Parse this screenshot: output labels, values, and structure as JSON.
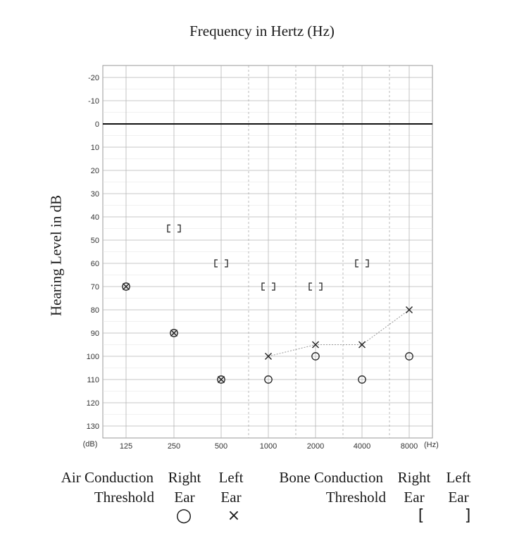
{
  "chart_data": {
    "type": "scatter",
    "title": "Frequency in Hertz (Hz)",
    "ylabel": "Hearing Level in dB",
    "x_unit": "(Hz)",
    "y_unit": "(dB)",
    "x_ticks": [
      "125",
      "250",
      "500",
      "1000",
      "2000",
      "4000",
      "8000"
    ],
    "y_ticks": [
      -20,
      -10,
      0,
      10,
      20,
      30,
      40,
      50,
      60,
      70,
      80,
      90,
      100,
      110,
      120,
      130
    ],
    "ylim": [
      -20,
      130
    ],
    "y_inverted": true,
    "grid": true,
    "zero_line": 0,
    "series": [
      {
        "name": "Air Conduction Threshold Right Ear",
        "marker": "circle",
        "points": [
          {
            "x": "125",
            "y": 70
          },
          {
            "x": "250",
            "y": 90
          },
          {
            "x": "500",
            "y": 110
          },
          {
            "x": "1000",
            "y": 110
          },
          {
            "x": "2000",
            "y": 100
          },
          {
            "x": "4000",
            "y": 110
          },
          {
            "x": "8000",
            "y": 100
          }
        ]
      },
      {
        "name": "Air Conduction Threshold Left Ear",
        "marker": "cross",
        "connected_from": "1000",
        "points": [
          {
            "x": "125",
            "y": 70
          },
          {
            "x": "250",
            "y": 90
          },
          {
            "x": "500",
            "y": 110
          },
          {
            "x": "1000",
            "y": 100
          },
          {
            "x": "2000",
            "y": 95
          },
          {
            "x": "4000",
            "y": 95
          },
          {
            "x": "8000",
            "y": 80
          }
        ]
      },
      {
        "name": "Bone Conduction Threshold Right Ear",
        "marker": "bracket-left",
        "points": [
          {
            "x": "250",
            "y": 45
          },
          {
            "x": "500",
            "y": 60
          },
          {
            "x": "1000",
            "y": 70
          },
          {
            "x": "2000",
            "y": 70
          },
          {
            "x": "4000",
            "y": 60
          }
        ]
      },
      {
        "name": "Bone Conduction Threshold Left Ear",
        "marker": "bracket-right",
        "points": [
          {
            "x": "250",
            "y": 45
          },
          {
            "x": "500",
            "y": 60
          },
          {
            "x": "1000",
            "y": 70
          },
          {
            "x": "2000",
            "y": 70
          },
          {
            "x": "4000",
            "y": 60
          }
        ]
      }
    ]
  },
  "legend": {
    "air_line1": "Air Conduction",
    "air_line2": "Threshold",
    "air_right_1": "Right",
    "air_right_2": "Ear",
    "air_left_1": "Left",
    "air_left_2": "Ear",
    "bone_line1": "Bone Conduction",
    "bone_line2": "Threshold",
    "bone_right_1": "Right",
    "bone_right_2": "Ear",
    "bone_left_1": "Left",
    "bone_left_2": "Ear",
    "sym_air_right": "○",
    "sym_air_left": "×",
    "sym_bone_right": "[",
    "sym_bone_left": "]"
  }
}
